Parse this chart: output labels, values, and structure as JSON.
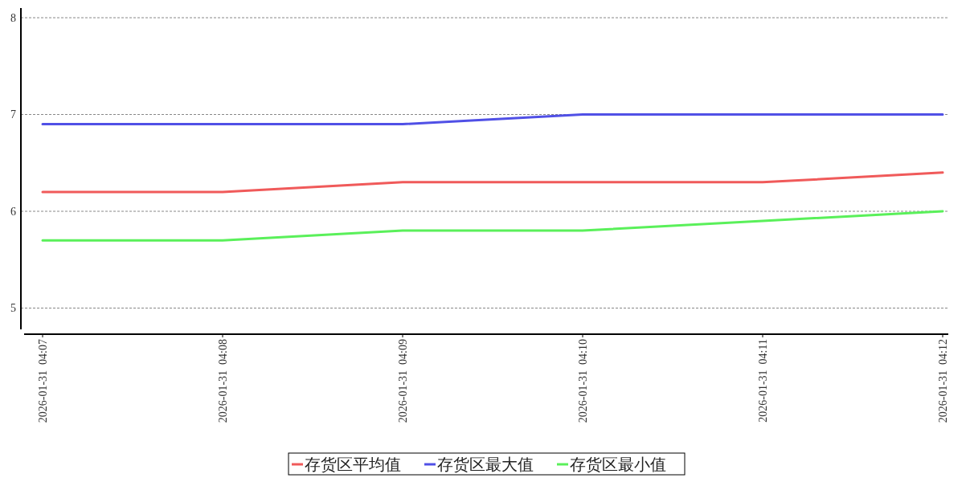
{
  "chart_data": {
    "type": "line",
    "categories": [
      "2026-01-31  04:07",
      "2026-01-31  04:08",
      "2026-01-31  04:09",
      "2026-01-31  04:10",
      "2026-01-31  04:11",
      "2026-01-31  04:12"
    ],
    "series": [
      {
        "name": "存货区平均值",
        "color": "#f05a5a",
        "values": [
          6.2,
          6.2,
          6.3,
          6.3,
          6.3,
          6.4
        ]
      },
      {
        "name": "存货区最大值",
        "color": "#5050e6",
        "values": [
          6.9,
          6.9,
          6.9,
          7.0,
          7.0,
          7.0
        ]
      },
      {
        "name": "存货区最小值",
        "color": "#5af05a",
        "values": [
          5.7,
          5.7,
          5.8,
          5.8,
          5.9,
          6.0
        ]
      }
    ],
    "ylim": [
      4.78,
      8.1
    ],
    "yticks": [
      5,
      6,
      7,
      8
    ],
    "grid": "y",
    "legend": "bottom",
    "marker": "none",
    "line_style": "solid"
  }
}
